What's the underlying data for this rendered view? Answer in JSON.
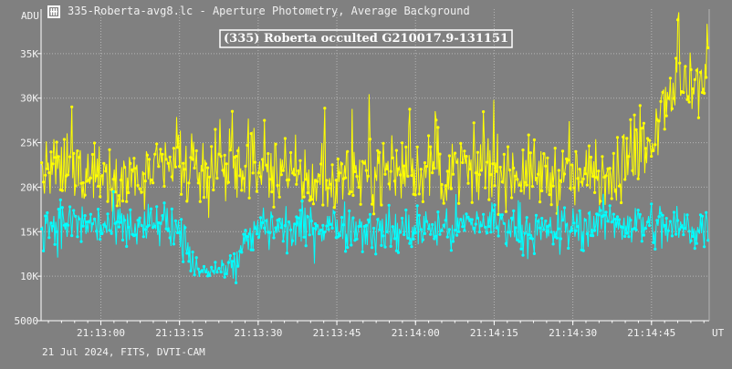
{
  "window": {
    "title": "335-Roberta-avg8.lc - Aperture Photometry, Average Background",
    "icon": "lightcurve-app-icon"
  },
  "footer": {
    "text": "21 Jul 2024, FITS, DVTI-CAM"
  },
  "colors": {
    "background": "#808080",
    "grid": "#b4b4b4",
    "target_series": "#00ffff",
    "comparison_series": "#ffff00"
  },
  "chart_data": {
    "type": "line",
    "title": "(335) Roberta occulted G210017.9-131151",
    "ylabel": "ADU",
    "xlabel": "UT",
    "ylim": [
      5000,
      40000
    ],
    "xlim": [
      "21:12:48.6",
      "21:14:56.0"
    ],
    "y_ticks": [
      {
        "value": 5000,
        "label": "5000"
      },
      {
        "value": 10000,
        "label": "10K"
      },
      {
        "value": 15000,
        "label": "15K"
      },
      {
        "value": 20000,
        "label": "20K"
      },
      {
        "value": 25000,
        "label": "25K"
      },
      {
        "value": 30000,
        "label": "30K"
      },
      {
        "value": 35000,
        "label": "35K"
      }
    ],
    "x_ticks": [
      "21:13:00",
      "21:13:15",
      "21:13:30",
      "21:13:45",
      "21:14:00",
      "21:14:15",
      "21:14:30",
      "21:14:45"
    ],
    "grid": true,
    "legend": "none",
    "series": [
      {
        "color": "#ffff00",
        "x_start": "21:12:48.6",
        "x_step_seconds": 6.0,
        "values": [
          21500,
          22000,
          21800,
          20500,
          22300,
          21000,
          21900,
          21700,
          21200,
          20200,
          21600,
          21800,
          22100,
          21300,
          21900,
          21700,
          21400,
          21000,
          21500,
          22600,
          31500
        ]
      },
      {
        "color": "#00ffff",
        "x_start": "21:12:48.6",
        "x_step_seconds": 6.0,
        "values": [
          15800,
          16000,
          15500,
          15300,
          15900,
          11200,
          10900,
          15600,
          15200,
          15800,
          15600,
          14900,
          15400,
          15300,
          16100,
          15700,
          14800,
          15500,
          16300,
          15800,
          15400
        ]
      }
    ],
    "occultation": {
      "start": "21:13:17.5",
      "end": "21:13:24.5",
      "level": 10800
    }
  }
}
